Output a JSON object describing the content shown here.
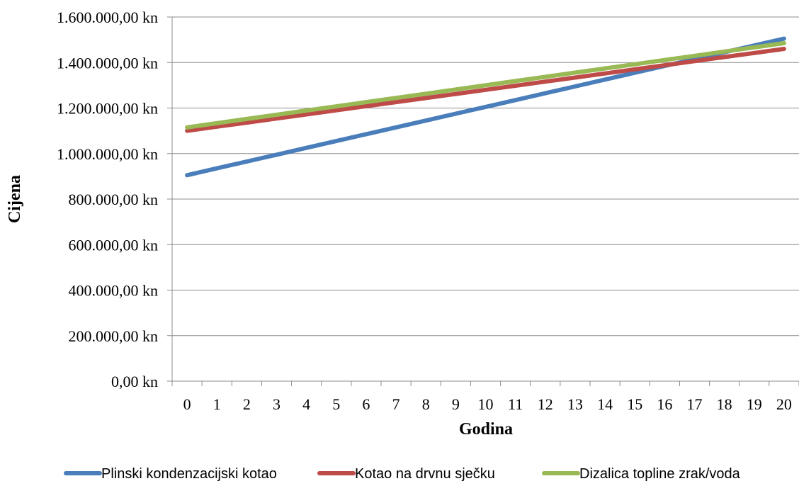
{
  "chart_data": {
    "type": "line",
    "xlabel": "Godina",
    "ylabel": "Cijena",
    "x": [
      0,
      1,
      2,
      3,
      4,
      5,
      6,
      7,
      8,
      9,
      10,
      11,
      12,
      13,
      14,
      15,
      16,
      17,
      18,
      19,
      20
    ],
    "ylim": [
      0,
      1600000
    ],
    "yticks": [
      0,
      200000,
      400000,
      600000,
      800000,
      1000000,
      1200000,
      1400000,
      1600000
    ],
    "ytick_labels": [
      "0,00 kn",
      "200.000,00 kn",
      "400.000,00 kn",
      "600.000,00 kn",
      "800.000,00 kn",
      "1.000.000,00 kn",
      "1.200.000,00 kn",
      "1.400.000,00 kn",
      "1.600.000,00 kn"
    ],
    "grid": "horizontal",
    "legend_position": "bottom",
    "series": [
      {
        "name": "Plinski kondenzacijski kotao",
        "color": "#4a7ebb",
        "values": [
          905000,
          935000,
          965000,
          995000,
          1025000,
          1055000,
          1085000,
          1115000,
          1145000,
          1175000,
          1205000,
          1235000,
          1265000,
          1295000,
          1325000,
          1355000,
          1385000,
          1415000,
          1445000,
          1475000,
          1505000
        ]
      },
      {
        "name": "Kotao na drvnu sječku",
        "color": "#be4b48",
        "values": [
          1100000,
          1118000,
          1136000,
          1154000,
          1172000,
          1190000,
          1208000,
          1226000,
          1244000,
          1262000,
          1280000,
          1298000,
          1316000,
          1334000,
          1352000,
          1370000,
          1388000,
          1406000,
          1424000,
          1442000,
          1460000
        ]
      },
      {
        "name": "Dizalica topline zrak/voda",
        "color": "#98b954",
        "values": [
          1115000,
          1133500,
          1152000,
          1170500,
          1189000,
          1207500,
          1226000,
          1244500,
          1263000,
          1281500,
          1300000,
          1318500,
          1337000,
          1355500,
          1374000,
          1392500,
          1411000,
          1429500,
          1448000,
          1466500,
          1485000
        ]
      }
    ]
  }
}
